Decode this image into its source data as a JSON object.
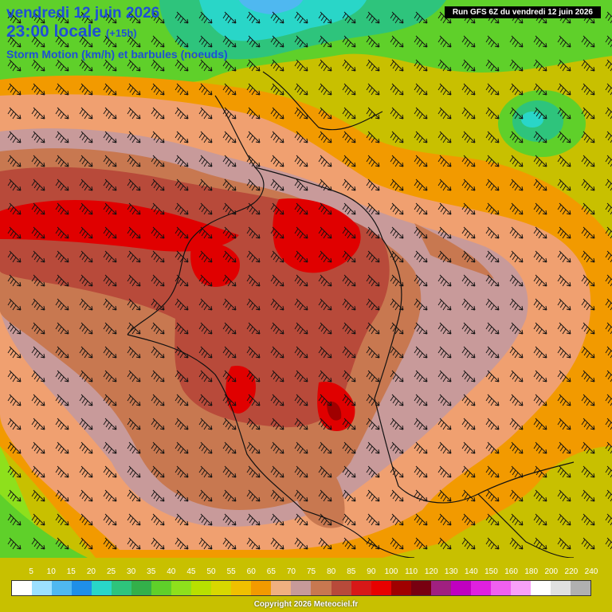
{
  "header": {
    "date": "vendredi 12 juin 2026",
    "time": "23:00 locale",
    "offset": "(+15h)",
    "parameter": "Storm Motion (km/h) et barbules (noeuds)",
    "run": "Run GFS 6Z du vendredi 12 juin 2026"
  },
  "legend": {
    "unit": "km/h",
    "labels": [
      "5",
      "10",
      "15",
      "20",
      "25",
      "30",
      "35",
      "40",
      "45",
      "50",
      "55",
      "60",
      "65",
      "70",
      "75",
      "80",
      "85",
      "90",
      "100",
      "110",
      "120",
      "130",
      "140",
      "150",
      "160",
      "180",
      "200",
      "220",
      "240"
    ],
    "colors": [
      "#ffffff",
      "#9ce0ff",
      "#4fb8f0",
      "#1f8fe8",
      "#29d6c8",
      "#2ec47c",
      "#33b04a",
      "#5fd02a",
      "#8ee01c",
      "#b8e000",
      "#d8d800",
      "#f0c000",
      "#f29a00",
      "#f0b080",
      "#c79a9a",
      "#c87850",
      "#b84a3a",
      "#d81818",
      "#e80000",
      "#a00000",
      "#780010",
      "#a02080",
      "#c000c0",
      "#e020e0",
      "#f060f0",
      "#f8a0f8",
      "#ffffff",
      "#e0e0e0",
      "#b0b0b0"
    ]
  },
  "map": {
    "region": "France and Western Europe",
    "wind_barb_direction": "northwest to southeast",
    "max_zone_color": "#e80000",
    "low_zone_color": "#29d6c8"
  },
  "footer": {
    "copyright": "Copyright 2026 Meteociel.fr"
  }
}
